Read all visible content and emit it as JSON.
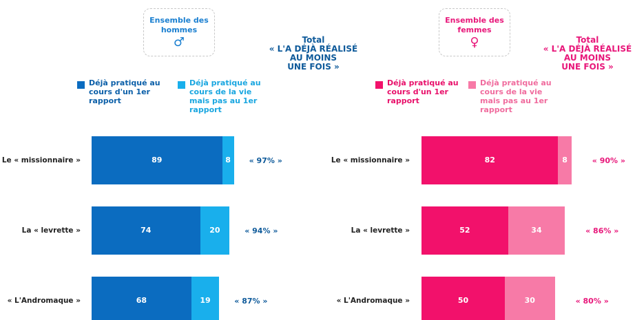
{
  "chart_data": [
    {
      "type": "bar",
      "orientation": "horizontal",
      "stacked": true,
      "group": [
        "Ensemble des",
        "hommes"
      ],
      "symbol": "♂",
      "accent": "#1a7fd0",
      "total_color": "#0e5a9a",
      "total_title": "Total",
      "total_subtitle": [
        "« L'A DÉJÀ RÉALISÉ",
        "AU MOINS",
        "UNE FOIS »"
      ],
      "categories": [
        "Le « missionnaire »",
        "La « levrette »",
        "« L'Andromaque »"
      ],
      "series": [
        {
          "name": "Déjà pratiqué au cours d'un 1er rapport",
          "color": "#0b6cc0",
          "text_color": "#0b5fa8",
          "values": [
            89,
            74,
            68
          ]
        },
        {
          "name": "Déjà pratiqué au cours de la vie mais pas au 1er rapport",
          "color": "#19afec",
          "text_color": "#19a6e0",
          "values": [
            8,
            20,
            19
          ]
        }
      ],
      "totals": [
        97,
        94,
        87
      ],
      "total_labels": [
        "« 97% »",
        "« 94% »",
        "« 87% »"
      ]
    },
    {
      "type": "bar",
      "orientation": "horizontal",
      "stacked": true,
      "group": [
        "Ensemble des",
        "femmes"
      ],
      "symbol": "♀",
      "accent": "#e8177a",
      "total_color": "#e8177a",
      "total_title": "Total",
      "total_subtitle": [
        "« L'A DÉJÀ RÉALISÉ",
        "AU MOINS",
        "UNE FOIS »"
      ],
      "categories": [
        "Le « missionnaire »",
        "La « levrette »",
        "« L'Andromaque »"
      ],
      "series": [
        {
          "name": "Déjà pratiqué au cours d'un 1er rapport",
          "color": "#f2116b",
          "text_color": "#e8106a",
          "values": [
            82,
            52,
            50
          ]
        },
        {
          "name": "Déjà pratiqué au cours de la vie mais pas au 1er rapport",
          "color": "#f77aa7",
          "text_color": "#f06c9e",
          "values": [
            8,
            34,
            30
          ]
        }
      ],
      "totals": [
        90,
        86,
        80
      ],
      "total_labels": [
        "« 90% »",
        "« 86% »",
        "« 80% »"
      ]
    }
  ]
}
